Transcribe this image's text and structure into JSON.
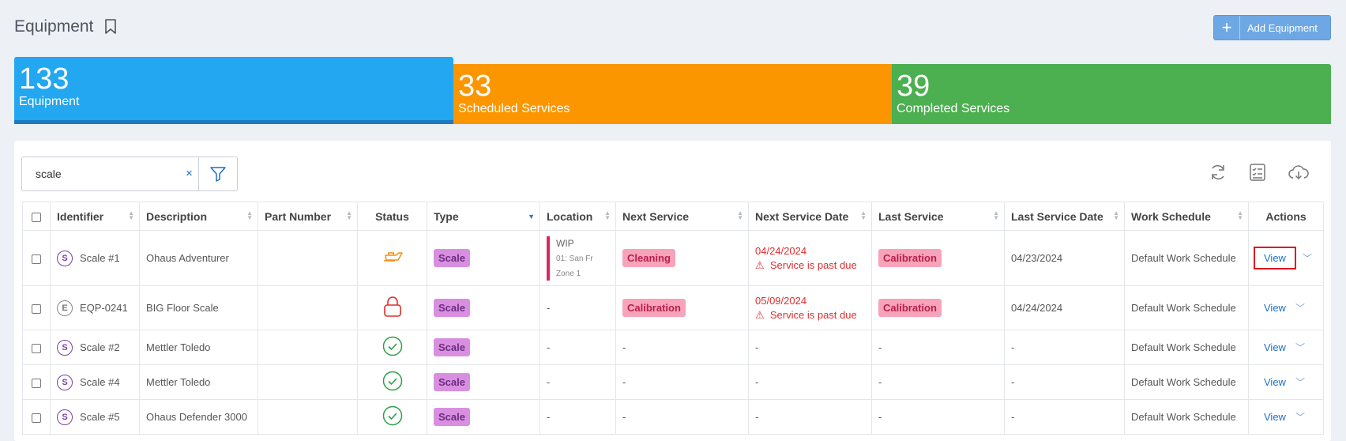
{
  "header": {
    "title": "Equipment",
    "add_button": "Add Equipment"
  },
  "stats": [
    {
      "value": "133",
      "label": "Equipment",
      "color": "#22a7f0"
    },
    {
      "value": "33",
      "label": "Scheduled Services",
      "color": "#fb9601"
    },
    {
      "value": "39",
      "label": "Completed Services",
      "color": "#4caf50"
    }
  ],
  "search": {
    "value": "scale",
    "clear": "×"
  },
  "columns": [
    "Identifier",
    "Description",
    "Part Number",
    "Status",
    "Type",
    "Location",
    "Next Service",
    "Next Service Date",
    "Last Service",
    "Last Service Date",
    "Work Schedule",
    "Actions"
  ],
  "rows": [
    {
      "letter": "S",
      "identifier": "Scale #1",
      "description": "Ohaus Adventurer",
      "part_number": "",
      "status_icon": "oil-can-icon",
      "type": "Scale",
      "location_main": "WIP",
      "location_sub1": "01: San Fr",
      "location_sub2": "Zone 1",
      "next_service": "Cleaning",
      "next_service_date": "04/24/2024",
      "due_warning": "Service is past due",
      "last_service": "Calibration",
      "last_service_date": "04/23/2024",
      "work_schedule": "Default Work Schedule",
      "action": "View"
    },
    {
      "letter": "E",
      "identifier": "EQP-0241",
      "description": "BIG Floor Scale",
      "part_number": "",
      "status_icon": "lock-icon",
      "type": "Scale",
      "location": "-",
      "next_service": "Calibration",
      "next_service_date": "05/09/2024",
      "due_warning": "Service is past due",
      "last_service": "Calibration",
      "last_service_date": "04/24/2024",
      "work_schedule": "Default Work Schedule",
      "action": "View"
    },
    {
      "letter": "S",
      "identifier": "Scale #2",
      "description": "Mettler Toledo",
      "part_number": "",
      "status_icon": "check-circle-icon",
      "type": "Scale",
      "location": "-",
      "next_service": "-",
      "next_service_date": "-",
      "last_service": "-",
      "last_service_date": "-",
      "work_schedule": "Default Work Schedule",
      "action": "View"
    },
    {
      "letter": "S",
      "identifier": "Scale #4",
      "description": "Mettler Toledo",
      "part_number": "",
      "status_icon": "check-circle-icon",
      "type": "Scale",
      "location": "-",
      "next_service": "-",
      "next_service_date": "-",
      "last_service": "-",
      "last_service_date": "-",
      "work_schedule": "Default Work Schedule",
      "action": "View"
    },
    {
      "letter": "S",
      "identifier": "Scale #5",
      "description": "Ohaus Defender 3000",
      "part_number": "",
      "status_icon": "check-circle-icon",
      "type": "Scale",
      "location": "-",
      "next_service": "-",
      "next_service_date": "-",
      "last_service": "-",
      "last_service_date": "-",
      "work_schedule": "Default Work Schedule",
      "action": "View"
    }
  ]
}
